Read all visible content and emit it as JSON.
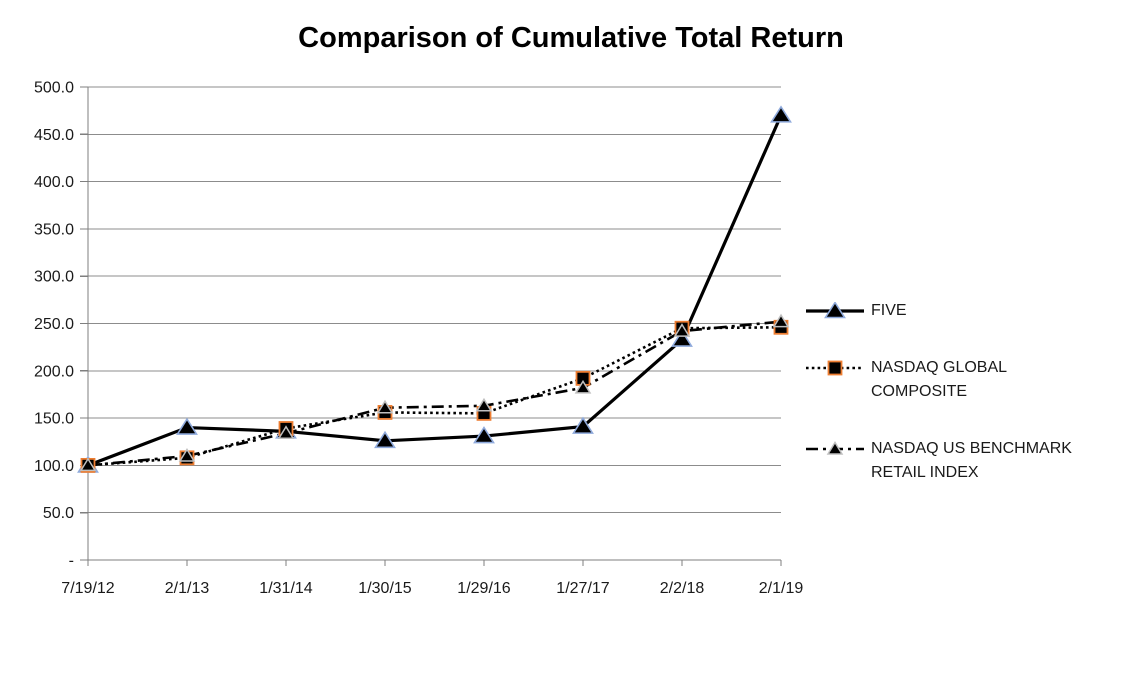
{
  "chart": {
    "title": "Comparison of Cumulative Total Return"
  },
  "chart_data": {
    "type": "line",
    "title": "Comparison of Cumulative Total Return",
    "x_categories": [
      "7/19/12",
      "2/1/13",
      "1/31/14",
      "1/30/15",
      "1/29/16",
      "1/27/17",
      "2/2/18",
      "2/1/19"
    ],
    "series": [
      {
        "name": "FIVE",
        "values": [
          100,
          140,
          136,
          126,
          131,
          141,
          233,
          470
        ],
        "line_style": "solid",
        "line_width": 3.2,
        "marker": "triangle",
        "marker_outline": "#8FAADC"
      },
      {
        "name": "NASDAQ GLOBAL COMPOSITE",
        "values": [
          100,
          108,
          139,
          156,
          155,
          192,
          245,
          246
        ],
        "line_style": "dotted",
        "line_width": 2.6,
        "marker": "square",
        "marker_outline": "#ED7D31"
      },
      {
        "name": "NASDAQ US BENCHMARK RETAIL INDEX",
        "values": [
          100,
          110,
          134,
          161,
          163,
          182,
          242,
          252
        ],
        "line_style": "dashdot",
        "line_width": 2.6,
        "marker": "triangle-small",
        "marker_outline": "#BFBFBF"
      }
    ],
    "ylim": [
      0,
      500
    ],
    "ytick_step": 50,
    "ytick_labels": [
      "-",
      "50.0",
      "100.0",
      "150.0",
      "200.0",
      "250.0",
      "300.0",
      "350.0",
      "400.0",
      "450.0",
      "500.0"
    ],
    "grid": "horizontal",
    "legend_position": "right",
    "colors": {
      "line": "#000000",
      "gridline": "#8C8C8C",
      "axis": "#7F7F7F",
      "text": "#1A1A1A",
      "marker_fill": "#000000"
    }
  }
}
